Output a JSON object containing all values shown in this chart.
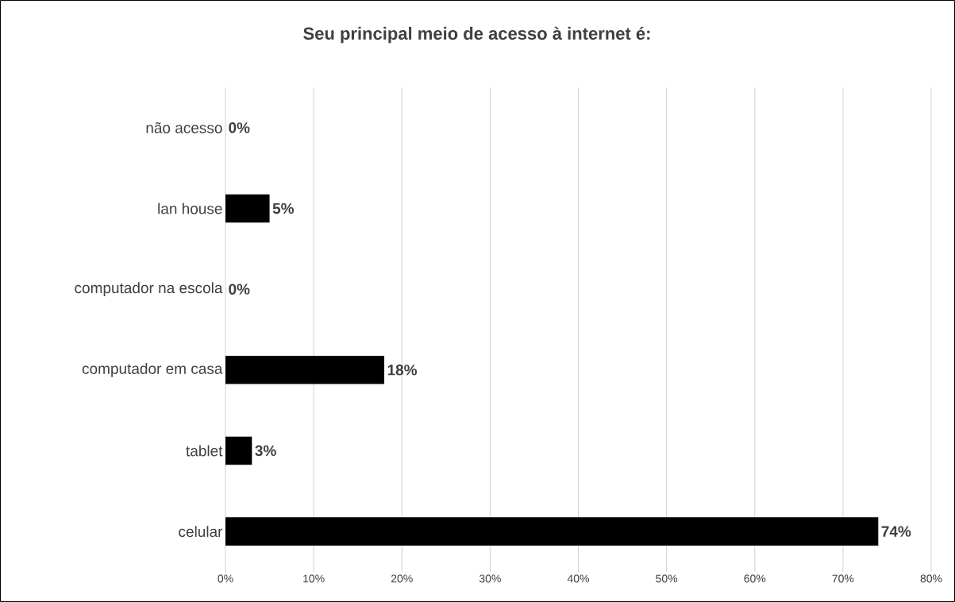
{
  "chart_data": {
    "type": "bar",
    "orientation": "horizontal",
    "title": "Seu principal meio de acesso à internet é:",
    "categories": [
      "não acesso",
      "lan house",
      "computador na escola",
      "computador em casa",
      "tablet",
      "celular"
    ],
    "values": [
      0,
      5,
      0,
      18,
      3,
      74
    ],
    "value_labels": [
      "0%",
      "5%",
      "0%",
      "18%",
      "3%",
      "74%"
    ],
    "color": "#000000",
    "xlim": [
      0,
      80
    ],
    "xticks": [
      {
        "value": 0,
        "label": "0%"
      },
      {
        "value": 10,
        "label": "10%"
      },
      {
        "value": 20,
        "label": "20%"
      },
      {
        "value": 30,
        "label": "30%"
      },
      {
        "value": 40,
        "label": "40%"
      },
      {
        "value": 50,
        "label": "50%"
      },
      {
        "value": 60,
        "label": "60%"
      },
      {
        "value": 70,
        "label": "70%"
      },
      {
        "value": 80,
        "label": "80%"
      }
    ],
    "grid": "x"
  }
}
